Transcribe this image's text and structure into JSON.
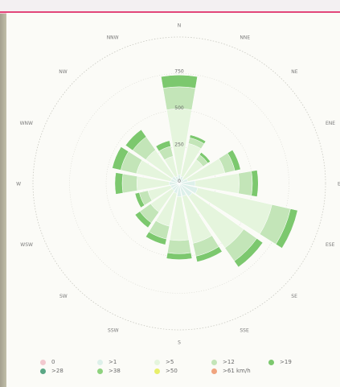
{
  "chart_data": {
    "type": "polar-bar",
    "directions": [
      "N",
      "NNE",
      "NE",
      "ENE",
      "E",
      "ESE",
      "SE",
      "SSE",
      "S",
      "SSW",
      "SW",
      "WSW",
      "W",
      "WNW",
      "NW",
      "NNW"
    ],
    "radial_ticks": [
      {
        "value": 0,
        "label": "0"
      },
      {
        "value": 250,
        "label": "250"
      },
      {
        "value": 500,
        "label": "500"
      },
      {
        "value": 750,
        "label": "750"
      }
    ],
    "rmax": 1000,
    "series": [
      {
        "name": "0",
        "color": "#f2c9cf",
        "values": [
          0,
          0,
          0,
          0,
          0,
          0,
          0,
          0,
          0,
          0,
          0,
          0,
          0,
          0,
          0,
          0
        ]
      },
      {
        "name": ">1",
        "color": "#ddf0ea",
        "values": [
          60,
          50,
          40,
          60,
          110,
          130,
          110,
          90,
          90,
          70,
          60,
          60,
          70,
          60,
          60,
          50
        ]
      },
      {
        "name": ">5",
        "color": "#e5f5dd",
        "values": [
          450,
          230,
          160,
          260,
          300,
          520,
          430,
          330,
          300,
          230,
          180,
          160,
          220,
          240,
          220,
          140
        ]
      },
      {
        "name": ">12",
        "color": "#c3e5b8",
        "values": [
          150,
          40,
          40,
          70,
          90,
          130,
          110,
          90,
          90,
          90,
          90,
          60,
          100,
          110,
          110,
          70
        ]
      },
      {
        "name": ">19",
        "color": "#7cc86e",
        "values": [
          80,
          20,
          20,
          40,
          40,
          50,
          50,
          40,
          40,
          40,
          40,
          30,
          50,
          60,
          60,
          40
        ]
      },
      {
        "name": ">28",
        "color": "#5aa785",
        "values": [
          0,
          0,
          0,
          0,
          0,
          0,
          0,
          0,
          0,
          0,
          0,
          0,
          0,
          0,
          0,
          0
        ]
      },
      {
        "name": ">38",
        "color": "#8ed27e",
        "values": [
          0,
          0,
          0,
          0,
          0,
          0,
          0,
          0,
          0,
          0,
          0,
          0,
          0,
          0,
          0,
          0
        ]
      },
      {
        "name": ">50",
        "color": "#e8ef6a",
        "values": [
          0,
          0,
          0,
          0,
          0,
          0,
          0,
          0,
          0,
          0,
          0,
          0,
          0,
          0,
          0,
          0
        ]
      },
      {
        "name": ">61 km/h",
        "color": "#f0a47e",
        "values": [
          0,
          0,
          0,
          0,
          0,
          0,
          0,
          0,
          0,
          0,
          0,
          0,
          0,
          0,
          0,
          0
        ]
      }
    ],
    "legend_position": "bottom",
    "grid": true
  }
}
